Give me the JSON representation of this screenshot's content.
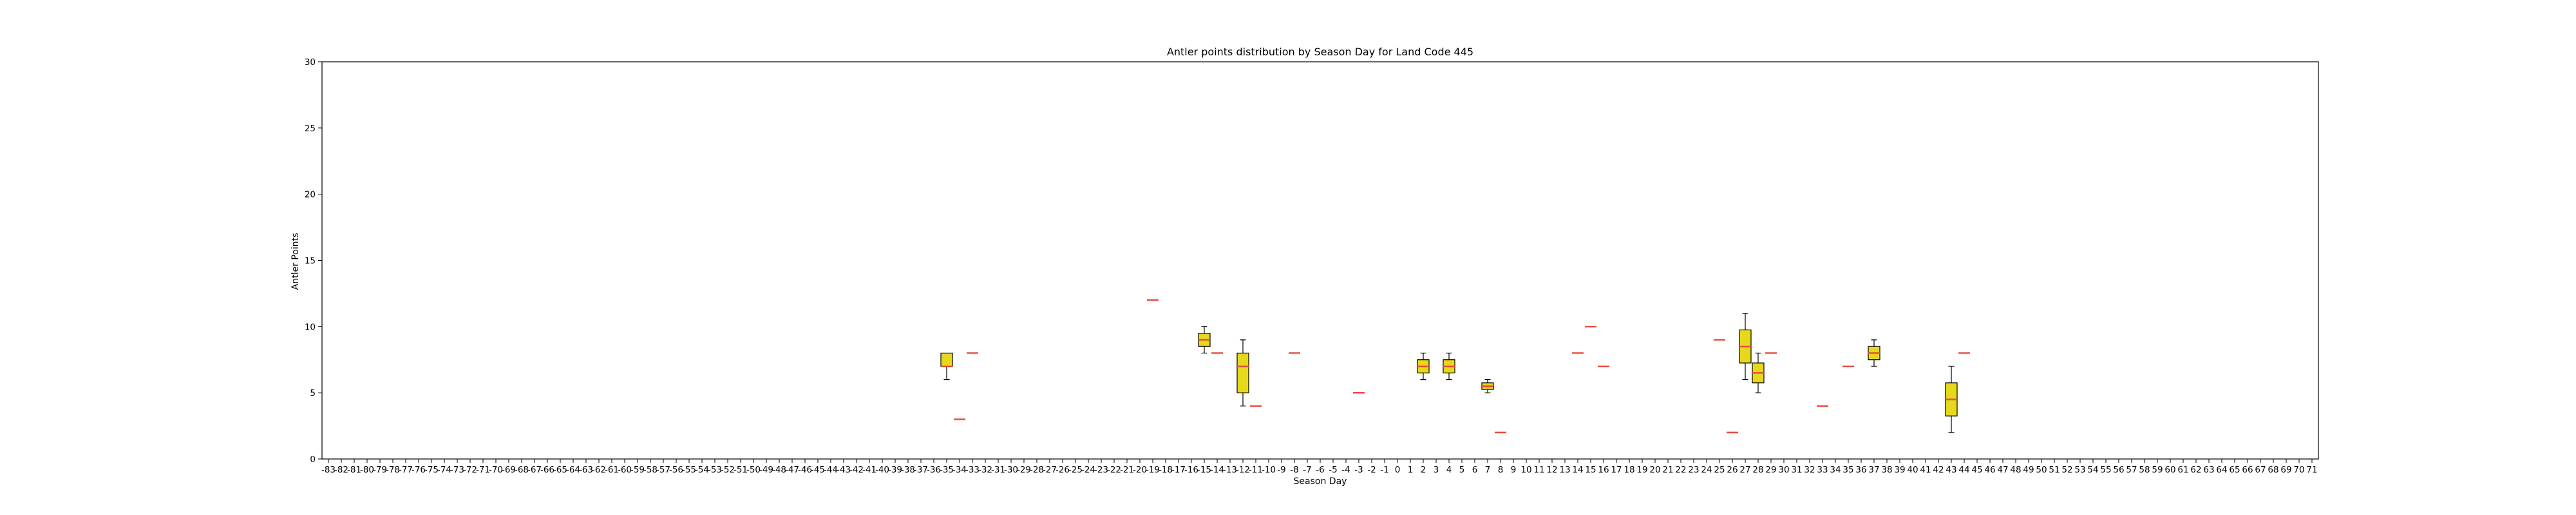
{
  "chart_data": {
    "type": "box",
    "title": "Antler points distribution by Season Day for Land Code 445",
    "xlabel": "Season Day",
    "ylabel": "Antler Points",
    "ylim": [
      0,
      30
    ],
    "yticks": [
      0,
      5,
      10,
      15,
      20,
      25,
      30
    ],
    "x_categories": [
      -83,
      -82,
      -81,
      -80,
      -79,
      -78,
      -77,
      -76,
      -75,
      -74,
      -73,
      -72,
      -71,
      -70,
      -69,
      -68,
      -67,
      -66,
      -65,
      -64,
      -63,
      -62,
      -61,
      -60,
      -59,
      -58,
      -57,
      -56,
      -55,
      -54,
      -53,
      -52,
      -51,
      -50,
      -49,
      -48,
      -47,
      -46,
      -45,
      -44,
      -43,
      -42,
      -41,
      -40,
      -39,
      -38,
      -37,
      -36,
      -35,
      -34,
      -33,
      -32,
      -31,
      -30,
      -29,
      -28,
      -27,
      -26,
      -25,
      -24,
      -23,
      -22,
      -21,
      -20,
      -19,
      -18,
      -17,
      -16,
      -15,
      -14,
      -13,
      -12,
      -11,
      -10,
      -9,
      -8,
      -7,
      -6,
      -5,
      -4,
      -3,
      -2,
      -1,
      0,
      1,
      2,
      3,
      4,
      5,
      6,
      7,
      8,
      9,
      10,
      11,
      12,
      13,
      14,
      15,
      16,
      17,
      18,
      19,
      20,
      21,
      22,
      23,
      24,
      25,
      26,
      27,
      28,
      29,
      30,
      31,
      32,
      33,
      34,
      35,
      36,
      37,
      38,
      39,
      40,
      41,
      42,
      43,
      44,
      45,
      46,
      47,
      48,
      49,
      50,
      51,
      52,
      53,
      54,
      55,
      56,
      57,
      58,
      59,
      60,
      61,
      62,
      63,
      64,
      65,
      66,
      67,
      68,
      69,
      70,
      71
    ],
    "box_color": "#e6d81a",
    "median_color": "#e84a3a",
    "grid": false,
    "boxes": [
      {
        "day": -35,
        "whislo": 6,
        "q1": 7,
        "med": 7,
        "q3": 8,
        "whishi": 8
      },
      {
        "day": -34,
        "whislo": 3,
        "q1": 3,
        "med": 3,
        "q3": 3,
        "whishi": 3
      },
      {
        "day": -33,
        "whislo": 8,
        "q1": 8,
        "med": 8,
        "q3": 8,
        "whishi": 8
      },
      {
        "day": -19,
        "whislo": 12,
        "q1": 12,
        "med": 12,
        "q3": 12,
        "whishi": 12
      },
      {
        "day": -15,
        "whislo": 8,
        "q1": 8.5,
        "med": 9,
        "q3": 9.5,
        "whishi": 10
      },
      {
        "day": -14,
        "whislo": 8,
        "q1": 8,
        "med": 8,
        "q3": 8,
        "whishi": 8
      },
      {
        "day": -12,
        "whislo": 4,
        "q1": 5,
        "med": 7,
        "q3": 8,
        "whishi": 9
      },
      {
        "day": -11,
        "whislo": 4,
        "q1": 4,
        "med": 4,
        "q3": 4,
        "whishi": 4
      },
      {
        "day": -8,
        "whislo": 8,
        "q1": 8,
        "med": 8,
        "q3": 8,
        "whishi": 8
      },
      {
        "day": -3,
        "whislo": 5,
        "q1": 5,
        "med": 5,
        "q3": 5,
        "whishi": 5
      },
      {
        "day": 2,
        "whislo": 6,
        "q1": 6.5,
        "med": 7,
        "q3": 7.5,
        "whishi": 8
      },
      {
        "day": 4,
        "whislo": 6,
        "q1": 6.5,
        "med": 7,
        "q3": 7.5,
        "whishi": 8
      },
      {
        "day": 7,
        "whislo": 5,
        "q1": 5.25,
        "med": 5.5,
        "q3": 5.75,
        "whishi": 6
      },
      {
        "day": 8,
        "whislo": 2,
        "q1": 2,
        "med": 2,
        "q3": 2,
        "whishi": 2
      },
      {
        "day": 14,
        "whislo": 8,
        "q1": 8,
        "med": 8,
        "q3": 8,
        "whishi": 8
      },
      {
        "day": 15,
        "whislo": 10,
        "q1": 10,
        "med": 10,
        "q3": 10,
        "whishi": 10
      },
      {
        "day": 16,
        "whislo": 7,
        "q1": 7,
        "med": 7,
        "q3": 7,
        "whishi": 7
      },
      {
        "day": 25,
        "whislo": 9,
        "q1": 9,
        "med": 9,
        "q3": 9,
        "whishi": 9
      },
      {
        "day": 26,
        "whislo": 2,
        "q1": 2,
        "med": 2,
        "q3": 2,
        "whishi": 2
      },
      {
        "day": 27,
        "whislo": 6,
        "q1": 7.25,
        "med": 8.5,
        "q3": 9.75,
        "whishi": 11
      },
      {
        "day": 28,
        "whislo": 5,
        "q1": 5.75,
        "med": 6.5,
        "q3": 7.25,
        "whishi": 8
      },
      {
        "day": 29,
        "whislo": 8,
        "q1": 8,
        "med": 8,
        "q3": 8,
        "whishi": 8
      },
      {
        "day": 33,
        "whislo": 4,
        "q1": 4,
        "med": 4,
        "q3": 4,
        "whishi": 4
      },
      {
        "day": 35,
        "whislo": 7,
        "q1": 7,
        "med": 7,
        "q3": 7,
        "whishi": 7
      },
      {
        "day": 37,
        "whislo": 7,
        "q1": 7.5,
        "med": 8,
        "q3": 8.5,
        "whishi": 9
      },
      {
        "day": 43,
        "whislo": 2,
        "q1": 3.25,
        "med": 4.5,
        "q3": 5.75,
        "whishi": 7
      },
      {
        "day": 44,
        "whislo": 8,
        "q1": 8,
        "med": 8,
        "q3": 8,
        "whishi": 8
      }
    ]
  }
}
